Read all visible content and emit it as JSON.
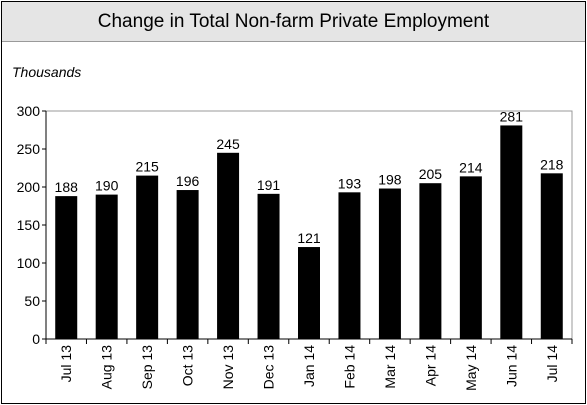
{
  "chart_data": {
    "type": "bar",
    "title": "Change in Total Non-farm Private Employment",
    "ylabel": "Thousands",
    "xlabel": "",
    "categories": [
      "Jul 13",
      "Aug 13",
      "Sep 13",
      "Oct 13",
      "Nov 13",
      "Dec 13",
      "Jan 14",
      "Feb 14",
      "Mar 14",
      "Apr 14",
      "May 14",
      "Jun 14",
      "Jul 14"
    ],
    "values": [
      188,
      190,
      215,
      196,
      245,
      191,
      121,
      193,
      198,
      205,
      214,
      281,
      218
    ],
    "ylim": [
      0,
      300
    ],
    "yticks": [
      0,
      50,
      100,
      150,
      200,
      250,
      300
    ],
    "grid": false,
    "data_labels": true,
    "colors": {
      "bar": "#000000",
      "title_background": "#e5e5e5",
      "plot_border": "#999999"
    }
  }
}
